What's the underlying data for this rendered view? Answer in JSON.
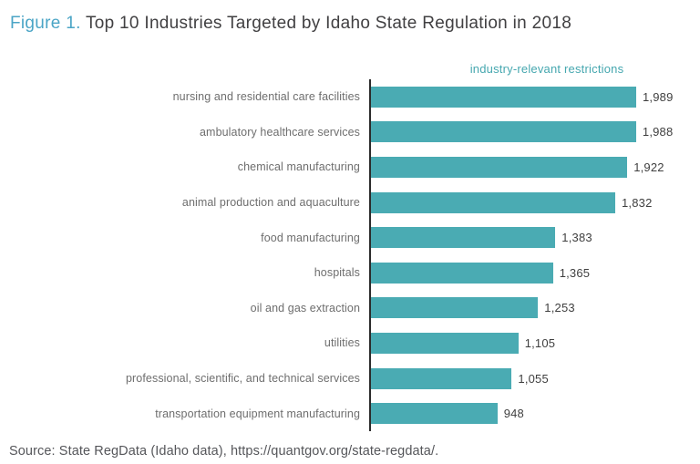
{
  "figure": {
    "label": "Figure 1.",
    "title": "Top 10 Industries Targeted by Idaho State Regulation in 2018"
  },
  "source": "Source: State RegData (Idaho data), https://quantgov.org/state-regdata/.",
  "colors": {
    "bar": "#4aabb3",
    "figure_label": "#4ba5c6",
    "series_header": "#45a7af",
    "title_text": "#414042",
    "category_label": "#6e6e6e",
    "value_label": "#3f3f3f",
    "axis": "#2b2b2b",
    "source_text": "#55565a"
  },
  "chart_data": {
    "type": "bar",
    "orientation": "horizontal",
    "series_label": "industry-relevant restrictions",
    "categories": [
      "nursing and residential care facilities",
      "ambulatory healthcare services",
      "chemical manufacturing",
      "animal production and aquaculture",
      "food manufacturing",
      "hospitals",
      "oil and gas extraction",
      "utilities",
      "professional, scientific, and technical services",
      "transportation equipment manufacturing"
    ],
    "values": [
      1989,
      1988,
      1922,
      1832,
      1383,
      1365,
      1253,
      1105,
      1055,
      948
    ],
    "value_labels": [
      "1,989",
      "1,988",
      "1,922",
      "1,832",
      "1,383",
      "1,365",
      "1,253",
      "1,105",
      "1,055",
      "948"
    ],
    "xlim": [
      0,
      2050
    ],
    "grid": false,
    "legend_position": "top",
    "title": "Top 10 Industries Targeted by Idaho State Regulation in 2018",
    "xlabel": "industry-relevant restrictions",
    "ylabel": ""
  }
}
